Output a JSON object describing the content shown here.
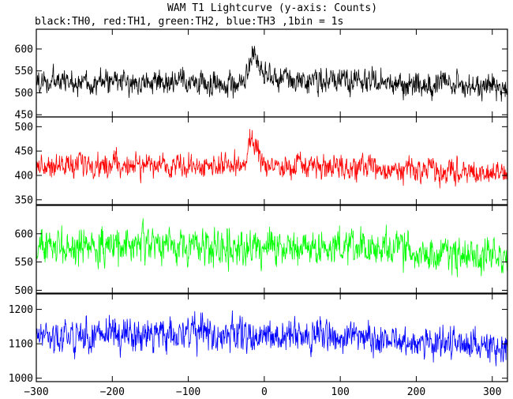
{
  "chart_data": {
    "type": "line",
    "title": "WAM T1 Lightcurve (y-axis: Counts)",
    "subtitle": "black:TH0, red:TH1, green:TH2, blue:TH3 ,1bin = 1s",
    "xlabel": "",
    "ylabel": "",
    "grid": false,
    "xlim": [
      -300,
      320
    ],
    "x_ticks": [
      -300,
      -200,
      -100,
      0,
      100,
      200,
      300
    ],
    "panels": [
      {
        "series_name": "TH0",
        "color": "#000000",
        "ylim": [
          445,
          645
        ],
        "y_ticks": [
          450,
          500,
          550,
          600
        ],
        "baseline": [
          [
            -300,
            525
          ],
          [
            -200,
            525
          ],
          [
            -100,
            522
          ],
          [
            -25,
            520
          ],
          [
            -18,
            582
          ],
          [
            -12,
            575
          ],
          [
            -5,
            545
          ],
          [
            0,
            535
          ],
          [
            100,
            528
          ],
          [
            200,
            520
          ],
          [
            300,
            514
          ],
          [
            320,
            510
          ]
        ],
        "noise_amplitude": 30
      },
      {
        "series_name": "TH1",
        "color": "#ff0000",
        "ylim": [
          340,
          520
        ],
        "y_ticks": [
          350,
          400,
          450,
          500
        ],
        "baseline": [
          [
            -300,
            420
          ],
          [
            -200,
            422
          ],
          [
            -100,
            420
          ],
          [
            -25,
            418
          ],
          [
            -18,
            478
          ],
          [
            -12,
            465
          ],
          [
            -5,
            430
          ],
          [
            0,
            420
          ],
          [
            100,
            415
          ],
          [
            200,
            410
          ],
          [
            300,
            404
          ],
          [
            320,
            400
          ]
        ],
        "noise_amplitude": 26
      },
      {
        "series_name": "TH2",
        "color": "#00ff00",
        "ylim": [
          495,
          650
        ],
        "y_ticks": [
          500,
          550,
          600
        ],
        "baseline": [
          [
            -300,
            575
          ],
          [
            -200,
            578
          ],
          [
            -100,
            580
          ],
          [
            0,
            577
          ],
          [
            100,
            575
          ],
          [
            200,
            568
          ],
          [
            300,
            560
          ],
          [
            320,
            555
          ]
        ],
        "noise_amplitude": 33
      },
      {
        "series_name": "TH3",
        "color": "#0000ff",
        "ylim": [
          990,
          1245
        ],
        "y_ticks": [
          1000,
          1100,
          1200
        ],
        "baseline": [
          [
            -300,
            1120
          ],
          [
            -200,
            1125
          ],
          [
            -100,
            1130
          ],
          [
            0,
            1128
          ],
          [
            100,
            1120
          ],
          [
            200,
            1110
          ],
          [
            300,
            1090
          ],
          [
            320,
            1085
          ]
        ],
        "noise_amplitude": 50
      }
    ]
  }
}
